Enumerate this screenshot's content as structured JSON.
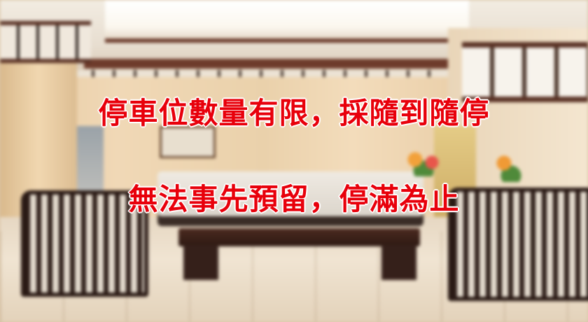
{
  "notice": {
    "line1": "停車位數量有限，採隨到隨停",
    "line2": "無法事先預留，停滿為止"
  },
  "colors": {
    "text": "#e8000b",
    "text_outline": "#ffffff"
  }
}
